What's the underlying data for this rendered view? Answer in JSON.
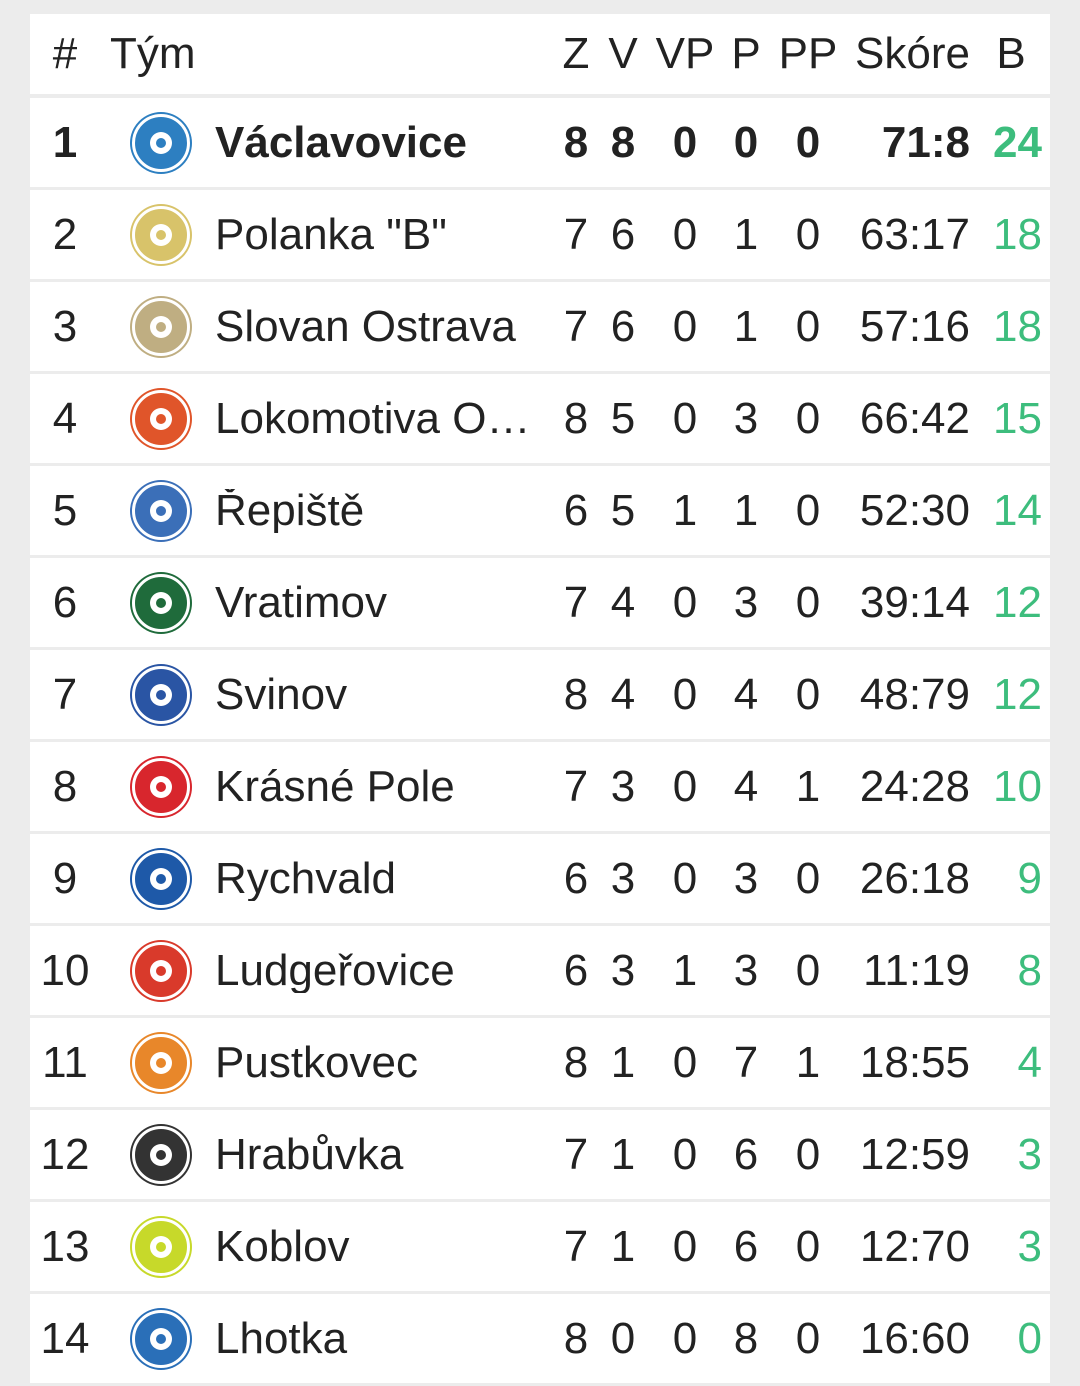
{
  "header": {
    "rank": "#",
    "team": "Tým",
    "z": "Z",
    "v": "V",
    "vp": "VP",
    "p": "P",
    "pp": "PP",
    "score": "Skóre",
    "b": "B"
  },
  "rows": [
    {
      "rank": "1",
      "team": "Václavovice",
      "z": "8",
      "v": "8",
      "vp": "0",
      "p": "0",
      "pp": "0",
      "score": "71:8",
      "b": "24",
      "logo_icon": "vaclavovice-crest-icon",
      "logo_color": "#2d7fc1"
    },
    {
      "rank": "2",
      "team": "Polanka \"B\"",
      "z": "7",
      "v": "6",
      "vp": "0",
      "p": "1",
      "pp": "0",
      "score": "63:17",
      "b": "18",
      "logo_icon": "polanka-crest-icon",
      "logo_color": "#d8c36a"
    },
    {
      "rank": "3",
      "team": "Slovan Ostrava",
      "z": "7",
      "v": "6",
      "vp": "0",
      "p": "1",
      "pp": "0",
      "score": "57:16",
      "b": "18",
      "logo_icon": "slovan-ostrava-crest-icon",
      "logo_color": "#bfae82"
    },
    {
      "rank": "4",
      "team": "Lokomotiva O…",
      "z": "8",
      "v": "5",
      "vp": "0",
      "p": "3",
      "pp": "0",
      "score": "66:42",
      "b": "15",
      "logo_icon": "lokomotiva-crest-icon",
      "logo_color": "#e0552a"
    },
    {
      "rank": "5",
      "team": "Řepiště",
      "z": "6",
      "v": "5",
      "vp": "1",
      "p": "1",
      "pp": "0",
      "score": "52:30",
      "b": "14",
      "logo_icon": "repiste-crest-icon",
      "logo_color": "#3b6fb8"
    },
    {
      "rank": "6",
      "team": "Vratimov",
      "z": "7",
      "v": "4",
      "vp": "0",
      "p": "3",
      "pp": "0",
      "score": "39:14",
      "b": "12",
      "logo_icon": "vratimov-crest-icon",
      "logo_color": "#1f6b3b"
    },
    {
      "rank": "7",
      "team": "Svinov",
      "z": "8",
      "v": "4",
      "vp": "0",
      "p": "4",
      "pp": "0",
      "score": "48:79",
      "b": "12",
      "logo_icon": "svinov-crest-icon",
      "logo_color": "#2a55a4"
    },
    {
      "rank": "8",
      "team": "Krásné Pole",
      "z": "7",
      "v": "3",
      "vp": "0",
      "p": "4",
      "pp": "1",
      "score": "24:28",
      "b": "10",
      "logo_icon": "krasne-pole-crest-icon",
      "logo_color": "#d8262d"
    },
    {
      "rank": "9",
      "team": "Rychvald",
      "z": "6",
      "v": "3",
      "vp": "0",
      "p": "3",
      "pp": "0",
      "score": "26:18",
      "b": "9",
      "logo_icon": "rychvald-crest-icon",
      "logo_color": "#1e59a8"
    },
    {
      "rank": "10",
      "team": "Ludgeřovice",
      "z": "6",
      "v": "3",
      "vp": "1",
      "p": "3",
      "pp": "0",
      "score": "11:19",
      "b": "8",
      "logo_icon": "ludgerovice-crest-icon",
      "logo_color": "#d93a2b"
    },
    {
      "rank": "11",
      "team": "Pustkovec",
      "z": "8",
      "v": "1",
      "vp": "0",
      "p": "7",
      "pp": "1",
      "score": "18:55",
      "b": "4",
      "logo_icon": "pustkovec-crest-icon",
      "logo_color": "#e8872a"
    },
    {
      "rank": "12",
      "team": "Hrabůvka",
      "z": "7",
      "v": "1",
      "vp": "0",
      "p": "6",
      "pp": "0",
      "score": "12:59",
      "b": "3",
      "logo_icon": "hrabuvka-crest-icon",
      "logo_color": "#333333"
    },
    {
      "rank": "13",
      "team": "Koblov",
      "z": "7",
      "v": "1",
      "vp": "0",
      "p": "6",
      "pp": "0",
      "score": "12:70",
      "b": "3",
      "logo_icon": "koblov-crest-icon",
      "logo_color": "#c7d92a"
    },
    {
      "rank": "14",
      "team": "Lhotka",
      "z": "8",
      "v": "0",
      "vp": "0",
      "p": "8",
      "pp": "0",
      "score": "16:60",
      "b": "0",
      "logo_icon": "lhotka-crest-icon",
      "logo_color": "#2a6fb8"
    }
  ],
  "colors": {
    "points": "#3dbd7d",
    "background": "#ececec",
    "row": "#ffffff"
  }
}
